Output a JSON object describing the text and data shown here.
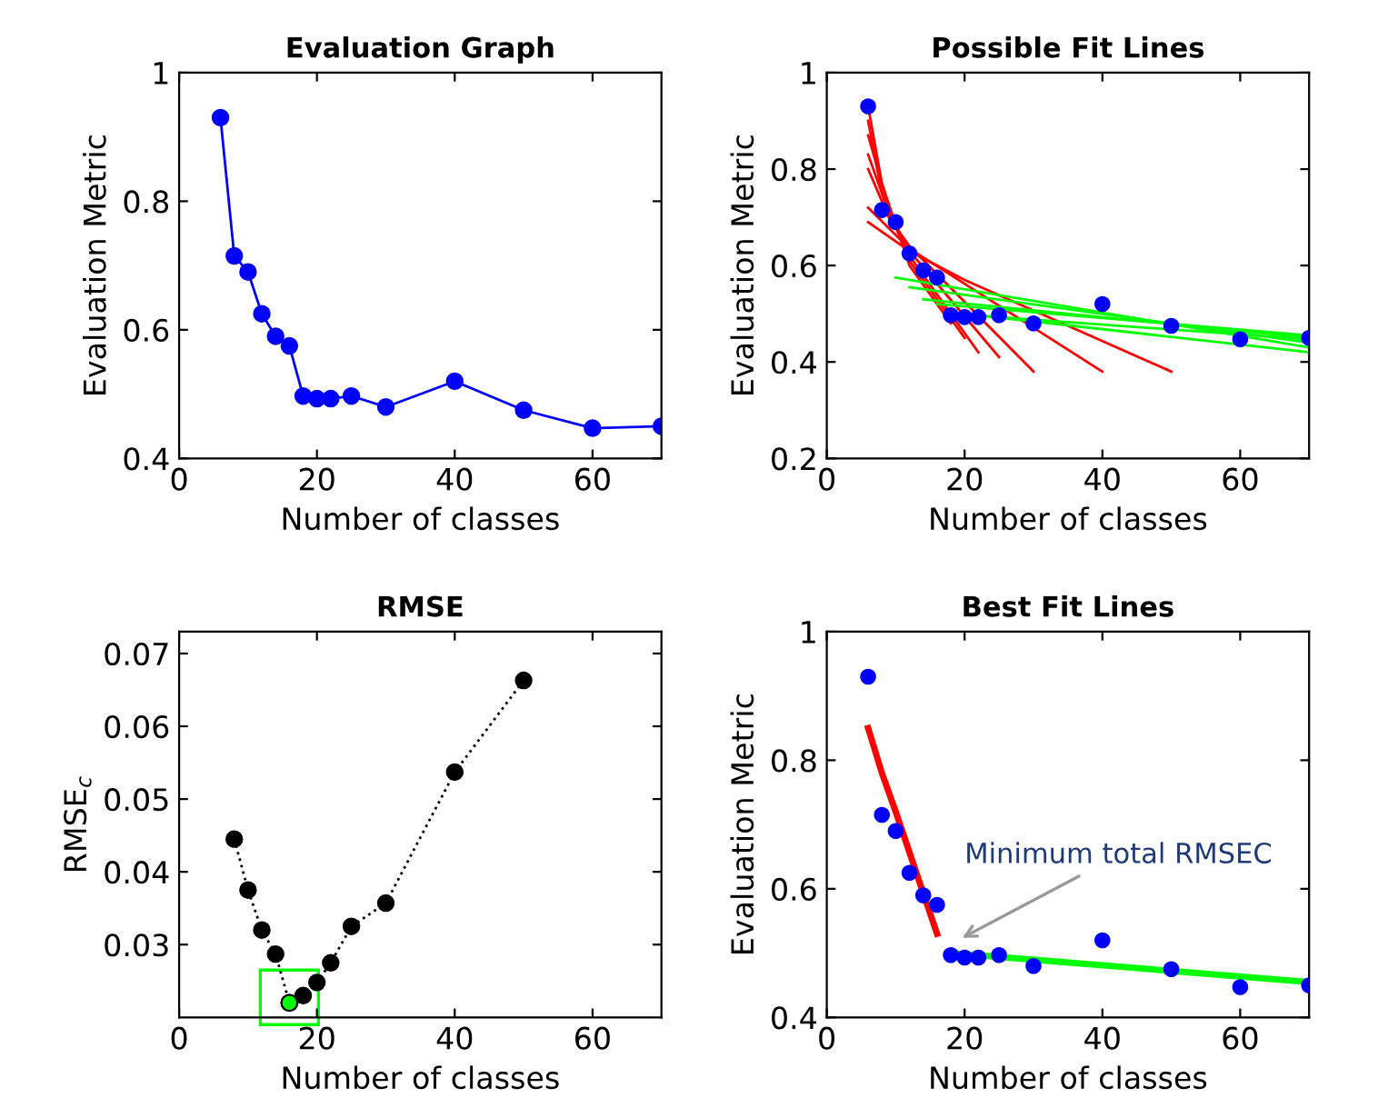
{
  "chart_data": [
    {
      "type": "line",
      "title": "Evaluation Graph",
      "xlabel": "Number of classes",
      "ylabel": "Evaluation Metric",
      "xlim": [
        0,
        70
      ],
      "xticks": [
        0,
        20,
        40,
        60
      ],
      "ylim": [
        0.4,
        1
      ],
      "yticks": [
        0.4,
        0.6,
        0.8,
        1
      ],
      "grid": false,
      "series": [
        {
          "type": "line",
          "color": "#0000ff",
          "marker": "circle",
          "line_style": "solid",
          "x": [
            6,
            8,
            10,
            12,
            14,
            16,
            18,
            20,
            22,
            25,
            30,
            40,
            50,
            60,
            70
          ],
          "values": [
            0.93,
            0.715,
            0.69,
            0.625,
            0.59,
            0.575,
            0.497,
            0.493,
            0.493,
            0.497,
            0.48,
            0.52,
            0.475,
            0.447,
            0.45
          ]
        }
      ]
    },
    {
      "type": "line",
      "title": "Possible Fit Lines",
      "xlabel": "Number of classes",
      "ylabel": "Evaluation Metric",
      "xlim": [
        0,
        70
      ],
      "xticks": [
        0,
        20,
        40,
        60
      ],
      "ylim": [
        0.2,
        1
      ],
      "yticks": [
        0.2,
        0.4,
        0.6,
        0.8,
        1
      ],
      "grid": false,
      "series": [
        {
          "type": "line",
          "color": "#ff0000",
          "line_style": "solid",
          "x": [
            6,
            12,
            20,
            50
          ],
          "values": [
            0.69,
            0.63,
            0.57,
            0.38
          ]
        },
        {
          "type": "line",
          "color": "#ff0000",
          "line_style": "solid",
          "x": [
            6,
            12,
            40
          ],
          "values": [
            0.72,
            0.635,
            0.38
          ]
        },
        {
          "type": "line",
          "color": "#ff0000",
          "line_style": "solid",
          "x": [
            6,
            9,
            12,
            30
          ],
          "values": [
            0.8,
            0.7,
            0.64,
            0.38
          ]
        },
        {
          "type": "line",
          "color": "#ff0000",
          "line_style": "solid",
          "x": [
            6,
            9,
            12,
            25
          ],
          "values": [
            0.83,
            0.71,
            0.63,
            0.41
          ]
        },
        {
          "type": "line",
          "color": "#ff0000",
          "line_style": "solid",
          "x": [
            6,
            9,
            12,
            22
          ],
          "values": [
            0.87,
            0.72,
            0.62,
            0.42
          ]
        },
        {
          "type": "line",
          "color": "#ff0000",
          "line_style": "solid",
          "x": [
            6,
            8,
            12,
            20
          ],
          "values": [
            0.9,
            0.75,
            0.61,
            0.45
          ]
        },
        {
          "type": "line",
          "color": "#ff0000",
          "line_style": "solid",
          "x": [
            6,
            8,
            12,
            18
          ],
          "values": [
            0.93,
            0.77,
            0.6,
            0.48
          ]
        },
        {
          "type": "line",
          "color": "#00ff00",
          "line_style": "solid",
          "x": [
            10,
            70
          ],
          "values": [
            0.575,
            0.43
          ]
        },
        {
          "type": "line",
          "color": "#00ff00",
          "line_style": "solid",
          "x": [
            12,
            70
          ],
          "values": [
            0.555,
            0.44
          ]
        },
        {
          "type": "line",
          "color": "#00ff00",
          "line_style": "solid",
          "x": [
            14,
            70
          ],
          "values": [
            0.53,
            0.45
          ]
        },
        {
          "type": "line",
          "color": "#00ff00",
          "line_style": "solid",
          "x": [
            16,
            70
          ],
          "values": [
            0.52,
            0.455
          ]
        },
        {
          "type": "line",
          "color": "#00ff00",
          "line_style": "solid",
          "x": [
            18,
            70
          ],
          "values": [
            0.5,
            0.447
          ]
        },
        {
          "type": "line",
          "color": "#00ff00",
          "line_style": "solid",
          "x": [
            20,
            70
          ],
          "values": [
            0.5,
            0.42
          ]
        },
        {
          "type": "scatter",
          "color": "#0000ff",
          "marker": "circle",
          "x": [
            6,
            8,
            10,
            12,
            14,
            16,
            18,
            20,
            22,
            25,
            30,
            40,
            50,
            60,
            70
          ],
          "values": [
            0.93,
            0.715,
            0.69,
            0.625,
            0.59,
            0.575,
            0.497,
            0.493,
            0.493,
            0.497,
            0.48,
            0.52,
            0.475,
            0.447,
            0.45
          ]
        }
      ]
    },
    {
      "type": "line",
      "title": "RMSE",
      "xlabel": "Number of classes",
      "ylabel": "RMSE$_{c}$",
      "xlim": [
        0,
        70
      ],
      "xticks": [
        0,
        20,
        40,
        60
      ],
      "ylim": [
        0.02,
        0.073
      ],
      "yticks": [
        0.03,
        0.04,
        0.05,
        0.06,
        0.07
      ],
      "grid": false,
      "series": [
        {
          "type": "line",
          "color": "#000000",
          "marker": "circle",
          "line_style": "dotted",
          "x": [
            8,
            10,
            12,
            14,
            16,
            18,
            20,
            22,
            25,
            30,
            40,
            50
          ],
          "values": [
            0.0445,
            0.0375,
            0.032,
            0.0287,
            0.022,
            0.023,
            0.0248,
            0.0275,
            0.0325,
            0.0357,
            0.0537,
            0.0663
          ]
        },
        {
          "type": "scatter",
          "color": "#00ff00",
          "marker": "circle",
          "x": [
            16
          ],
          "values": [
            0.022
          ]
        }
      ]
    },
    {
      "type": "line",
      "title": "Best Fit Lines",
      "xlabel": "Number of classes",
      "ylabel": "Evaluation Metric",
      "xlim": [
        0,
        70
      ],
      "xticks": [
        0,
        20,
        40,
        60
      ],
      "ylim": [
        0.4,
        1
      ],
      "yticks": [
        0.4,
        0.6,
        0.8,
        1
      ],
      "grid": false,
      "annotations": [
        {
          "text": "Minimum total RMSEC",
          "x": 19,
          "y": 0.52
        }
      ],
      "series": [
        {
          "type": "scatter",
          "color": "#0000ff",
          "marker": "circle",
          "x": [
            6,
            8,
            10,
            12,
            14,
            16,
            18,
            20,
            22,
            25,
            30,
            40,
            50,
            60,
            70
          ],
          "values": [
            0.93,
            0.715,
            0.69,
            0.625,
            0.59,
            0.575,
            0.497,
            0.493,
            0.493,
            0.497,
            0.48,
            0.52,
            0.475,
            0.447,
            0.45
          ]
        },
        {
          "type": "line",
          "color": "#ff0000",
          "line_style": "solid",
          "x": [
            6,
            8,
            10,
            16
          ],
          "values": [
            0.85,
            0.78,
            0.72,
            0.53
          ]
        },
        {
          "type": "line",
          "color": "#00ff00",
          "line_style": "solid",
          "x": [
            18,
            70
          ],
          "values": [
            0.5,
            0.455
          ]
        }
      ]
    }
  ]
}
